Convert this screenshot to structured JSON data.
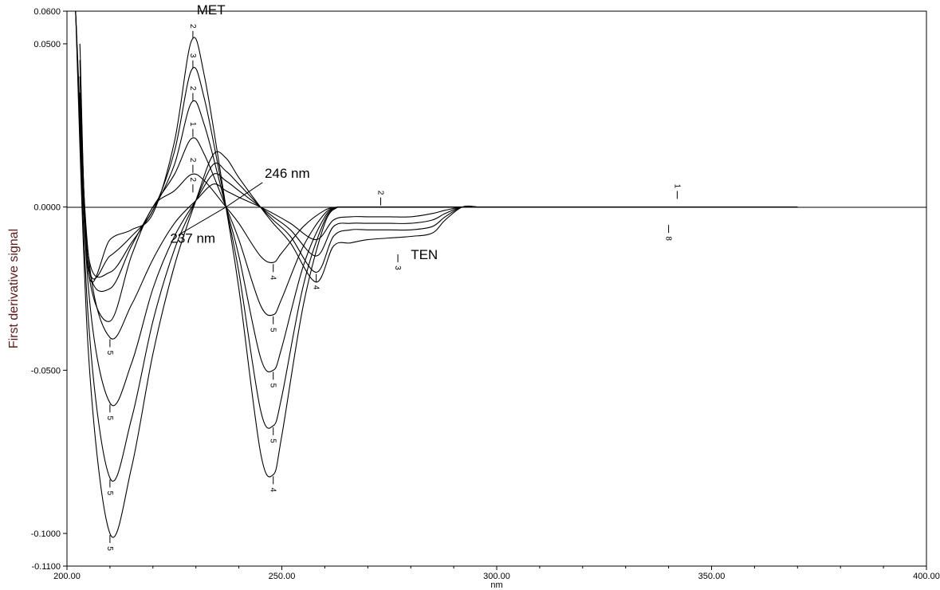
{
  "chart_data": {
    "type": "line",
    "title": "",
    "xlabel": "nm",
    "ylabel": "First derivative signal",
    "xlim": [
      200,
      400
    ],
    "ylim": [
      -0.11,
      0.06
    ],
    "x_ticks": [
      200,
      250,
      300,
      350,
      400
    ],
    "x_tick_labels": [
      "200.00",
      "250.00",
      "300.00",
      "350.00",
      "400.00"
    ],
    "y_ticks": [
      0.06,
      0.05,
      0.0,
      -0.05,
      -0.1,
      -0.11
    ],
    "y_tick_labels": [
      "0.0600",
      "0.0500",
      "0.0000",
      "-0.0500",
      "-0.1000",
      "-0.1100"
    ],
    "grid": false,
    "legend": "none",
    "line_color": "#000000",
    "annotations": [
      {
        "text": "MET",
        "x": 230.2,
        "y": 0.059
      },
      {
        "text": "246 nm",
        "x": 246,
        "y": 0.009
      },
      {
        "text": "237 nm",
        "x": 224,
        "y": -0.011
      },
      {
        "text": "TEN",
        "x": 280,
        "y": -0.016
      }
    ],
    "series": [
      {
        "x": [
          203,
          205,
          210,
          215,
          220,
          225,
          229,
          232,
          237,
          240,
          245,
          248,
          250,
          255,
          260,
          263
        ],
        "y": [
          0.05,
          -0.02,
          -0.01,
          -0.007,
          -0.002,
          0.02,
          0.051,
          0.04,
          0.0,
          -0.025,
          -0.075,
          -0.082,
          -0.07,
          -0.03,
          -0.005,
          0.0
        ]
      },
      {
        "x": [
          203,
          205,
          210,
          215,
          220,
          225,
          229,
          232,
          237,
          240,
          245,
          248,
          250,
          255,
          260,
          263
        ],
        "y": [
          0.045,
          -0.018,
          -0.015,
          -0.009,
          -0.001,
          0.017,
          0.042,
          0.033,
          0.0,
          -0.02,
          -0.062,
          -0.067,
          -0.058,
          -0.024,
          -0.004,
          0.0
        ]
      },
      {
        "x": [
          203,
          205,
          210,
          215,
          220,
          225,
          229,
          232,
          237,
          240,
          245,
          248,
          250,
          255,
          260,
          263
        ],
        "y": [
          0.04,
          -0.015,
          -0.02,
          -0.011,
          -0.001,
          0.013,
          0.032,
          0.025,
          0.0,
          -0.015,
          -0.046,
          -0.05,
          -0.043,
          -0.018,
          -0.003,
          0.0
        ]
      },
      {
        "x": [
          203,
          205,
          210,
          215,
          220,
          225,
          229,
          232,
          237,
          240,
          245,
          248,
          250,
          255,
          260,
          263
        ],
        "y": [
          0.035,
          -0.018,
          -0.025,
          -0.012,
          0.0,
          0.01,
          0.021,
          0.016,
          0.0,
          -0.01,
          -0.03,
          -0.033,
          -0.028,
          -0.012,
          -0.002,
          0.0
        ]
      },
      {
        "x": [
          203,
          205,
          210,
          215,
          220,
          225,
          229,
          232,
          237,
          240,
          245,
          248,
          250,
          255,
          260,
          263
        ],
        "y": [
          0.03,
          -0.02,
          -0.035,
          -0.015,
          0.0,
          0.005,
          0.01,
          0.008,
          0.0,
          -0.005,
          -0.015,
          -0.017,
          -0.014,
          -0.006,
          -0.001,
          0.0
        ]
      },
      {
        "x": [
          202,
          205,
          210,
          215,
          220,
          225,
          230,
          234,
          237,
          240,
          245,
          248,
          252,
          258,
          262,
          266,
          270,
          275,
          280,
          285,
          288,
          292,
          296,
          300
        ],
        "y": [
          0.06,
          -0.015,
          -0.04,
          -0.03,
          -0.016,
          -0.005,
          0.002,
          0.007,
          0.005,
          0.003,
          0.0,
          -0.002,
          -0.005,
          -0.01,
          -0.004,
          -0.003,
          -0.003,
          -0.003,
          -0.003,
          -0.002,
          -0.001,
          0.0,
          0.0,
          0.0
        ]
      },
      {
        "x": [
          202,
          205,
          210,
          215,
          220,
          225,
          230,
          234,
          237,
          240,
          245,
          248,
          252,
          258,
          262,
          266,
          270,
          275,
          280,
          285,
          288,
          292,
          296,
          300
        ],
        "y": [
          0.06,
          -0.025,
          -0.06,
          -0.048,
          -0.025,
          -0.009,
          0.002,
          0.01,
          0.008,
          0.005,
          0.0,
          -0.003,
          -0.007,
          -0.015,
          -0.006,
          -0.005,
          -0.005,
          -0.005,
          -0.005,
          -0.004,
          -0.002,
          0.0,
          0.0,
          0.0
        ]
      },
      {
        "x": [
          202,
          205,
          210,
          215,
          220,
          225,
          230,
          234,
          237,
          240,
          245,
          248,
          252,
          258,
          262,
          266,
          270,
          275,
          280,
          285,
          288,
          292,
          296,
          300
        ],
        "y": [
          0.06,
          -0.035,
          -0.083,
          -0.065,
          -0.035,
          -0.013,
          0.002,
          0.013,
          0.011,
          0.007,
          0.0,
          -0.004,
          -0.009,
          -0.02,
          -0.009,
          -0.007,
          -0.007,
          -0.007,
          -0.007,
          -0.006,
          -0.003,
          0.0,
          0.0,
          0.0
        ]
      },
      {
        "x": [
          202,
          205,
          210,
          215,
          220,
          225,
          230,
          234,
          237,
          240,
          245,
          248,
          252,
          258,
          262,
          266,
          270,
          275,
          280,
          285,
          288,
          292,
          296,
          300
        ],
        "y": [
          0.06,
          -0.045,
          -0.1,
          -0.08,
          -0.045,
          -0.018,
          0.002,
          0.016,
          0.015,
          0.009,
          0.0,
          -0.005,
          -0.011,
          -0.023,
          -0.012,
          -0.011,
          -0.01,
          -0.0095,
          -0.009,
          -0.008,
          -0.004,
          0.0,
          0.0,
          0.0
        ]
      }
    ]
  }
}
